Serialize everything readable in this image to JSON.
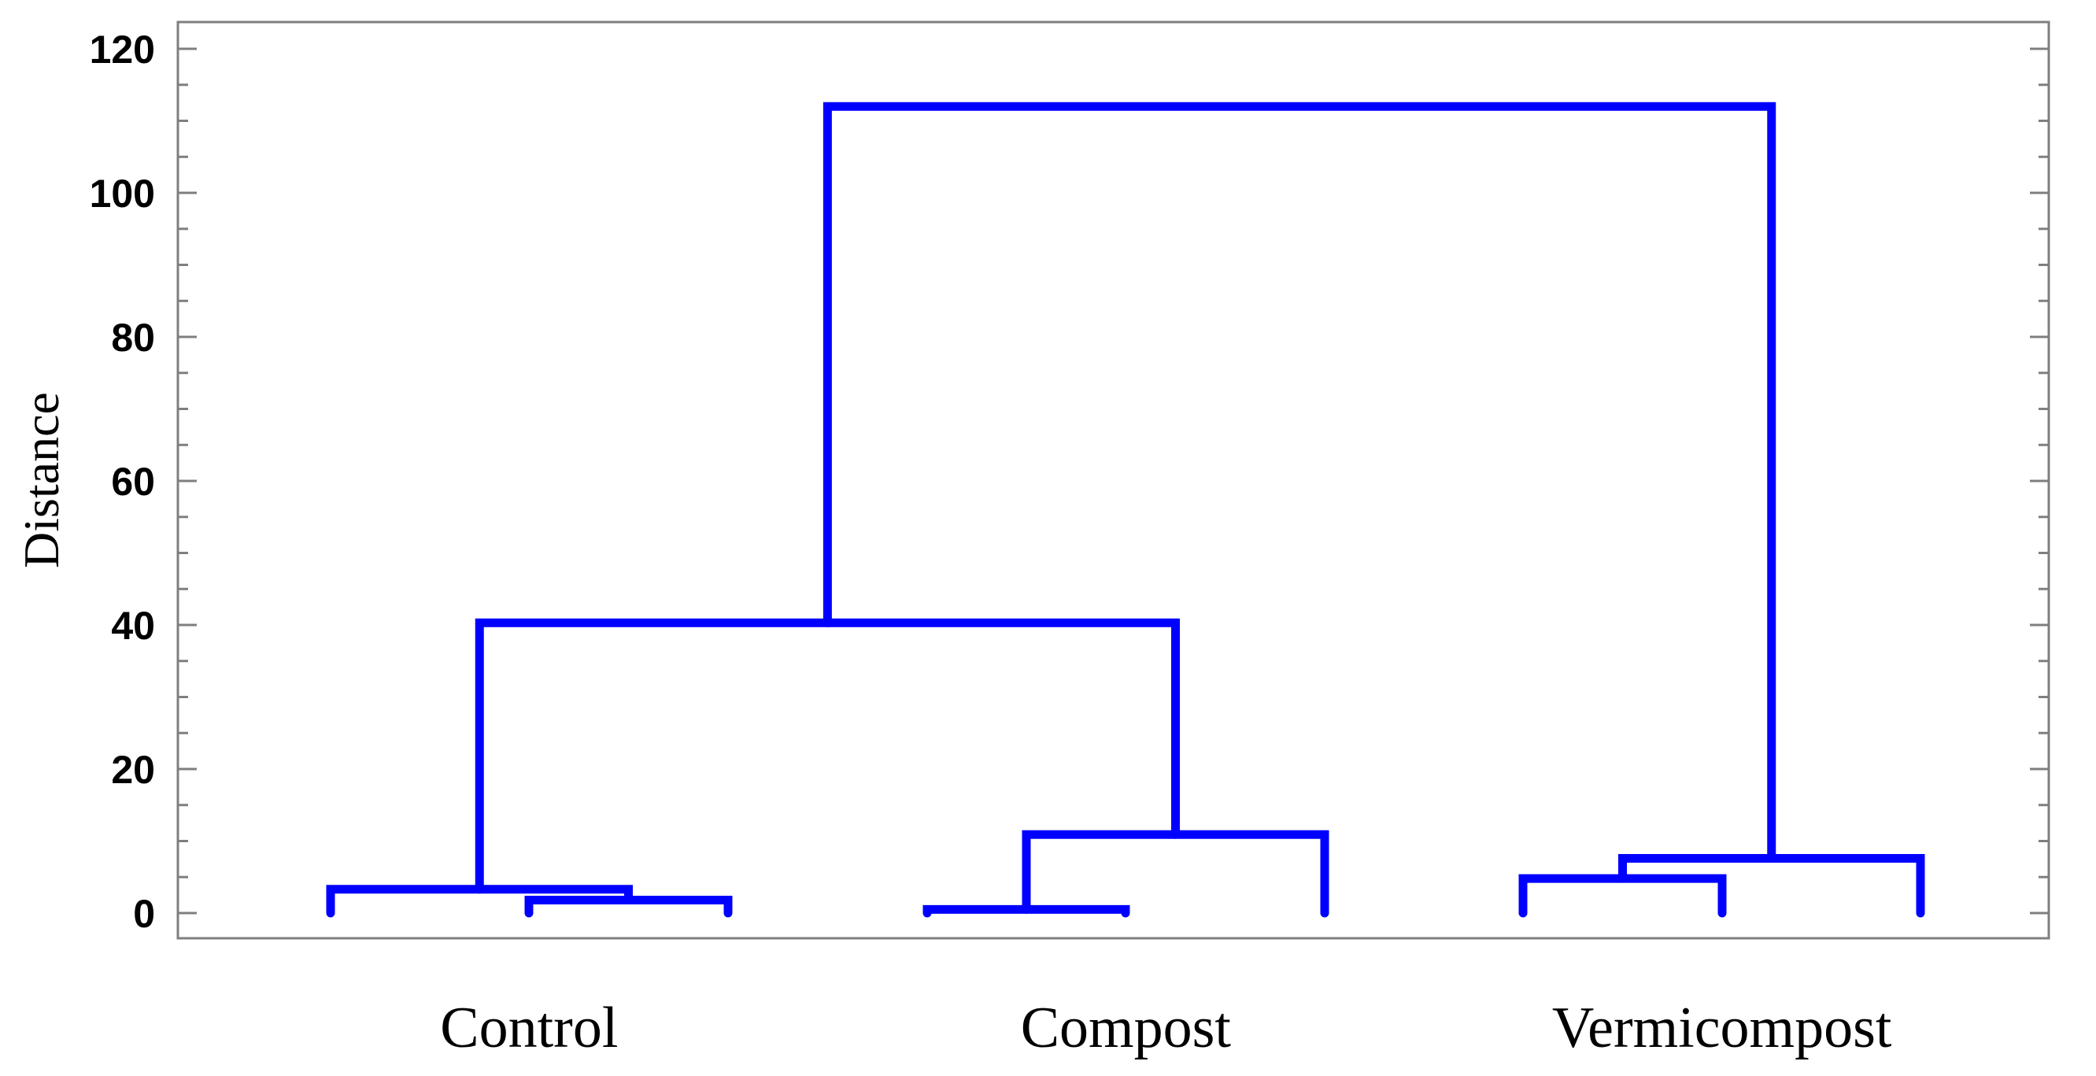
{
  "chart_data": {
    "type": "dendrogram",
    "ylabel": "Distance",
    "ylim": [
      0,
      120
    ],
    "yticks": [
      0,
      20,
      40,
      60,
      80,
      100,
      120
    ],
    "yminor_step": 5,
    "grid": false,
    "line_color": "#0000ff",
    "groups": [
      "Control",
      "Compost",
      "Vermicompost"
    ],
    "leaves": [
      {
        "id": "control-1",
        "group": "Control"
      },
      {
        "id": "control-2",
        "group": "Control"
      },
      {
        "id": "control-3",
        "group": "Control"
      },
      {
        "id": "compost-1",
        "group": "Compost"
      },
      {
        "id": "compost-2",
        "group": "Compost"
      },
      {
        "id": "compost-3",
        "group": "Compost"
      },
      {
        "id": "vermicompost-1",
        "group": "Vermicompost"
      },
      {
        "id": "vermicompost-2",
        "group": "Vermicompost"
      },
      {
        "id": "vermicompost-3",
        "group": "Vermicompost"
      }
    ],
    "merges": [
      {
        "id": "m1",
        "children": [
          "compost-1",
          "compost-2"
        ],
        "height": 0.5
      },
      {
        "id": "m2",
        "children": [
          "control-2",
          "control-3"
        ],
        "height": 1.8
      },
      {
        "id": "m3",
        "children": [
          "control-1",
          "m2"
        ],
        "height": 3.3
      },
      {
        "id": "m4",
        "children": [
          "vermicompost-1",
          "vermicompost-2"
        ],
        "height": 4.8
      },
      {
        "id": "m5",
        "children": [
          "m4",
          "vermicompost-3"
        ],
        "height": 7.6
      },
      {
        "id": "m6",
        "children": [
          "m1",
          "compost-3"
        ],
        "height": 10.9
      },
      {
        "id": "m7",
        "children": [
          "m3",
          "m6"
        ],
        "height": 40.3
      },
      {
        "id": "m8",
        "children": [
          "m7",
          "m5"
        ],
        "height": 112.0
      }
    ]
  }
}
